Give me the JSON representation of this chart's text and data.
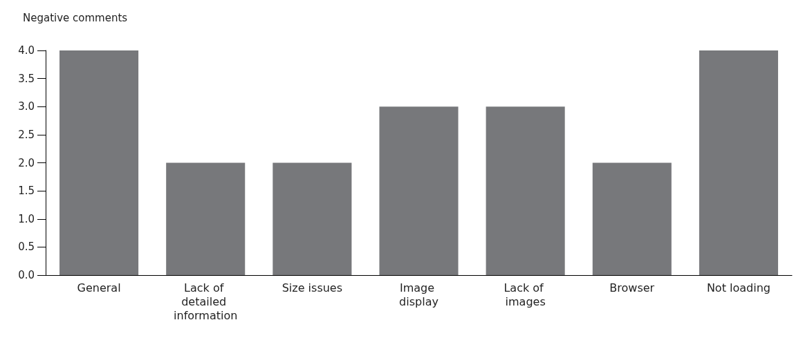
{
  "chart_data": {
    "type": "bar",
    "ylabel": "Negative comments",
    "categories": [
      "General",
      "Lack of detailed information",
      "Size issues",
      "Image display",
      "Lack of images",
      "Browser",
      "Not loading"
    ],
    "values": [
      4,
      2,
      2,
      3,
      3,
      2,
      4
    ],
    "color": "#77787b",
    "ylim": [
      0,
      4
    ],
    "yticks": [
      {
        "value": 0,
        "label": "0.0"
      },
      {
        "value": 0.5,
        "label": "0.5"
      },
      {
        "value": 1,
        "label": "1.0"
      },
      {
        "value": 1.5,
        "label": "1.5"
      },
      {
        "value": 2,
        "label": "2.0"
      },
      {
        "value": 2.5,
        "label": "2.5"
      },
      {
        "value": 3,
        "label": "3.0"
      },
      {
        "value": 3.5,
        "label": "3.5"
      },
      {
        "value": 4,
        "label": "4.0"
      }
    ],
    "grid": false
  }
}
